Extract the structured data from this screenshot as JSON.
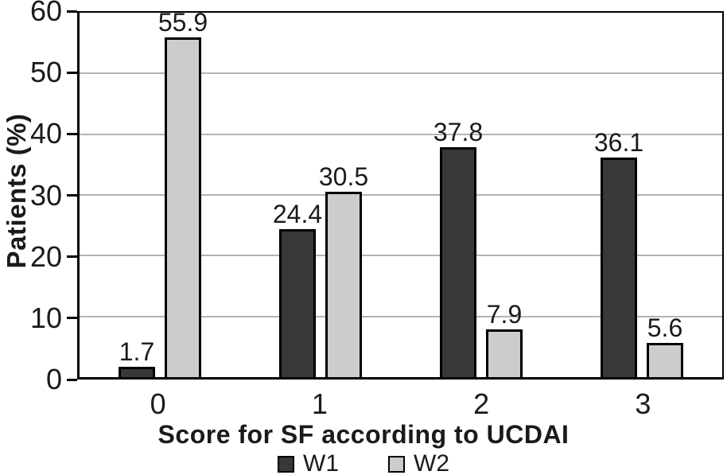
{
  "chart_data": {
    "type": "bar",
    "categories": [
      "0",
      "1",
      "2",
      "3"
    ],
    "series": [
      {
        "name": "W1",
        "values": [
          1.7,
          24.4,
          37.8,
          36.1
        ],
        "color": "#383838"
      },
      {
        "name": "W2",
        "values": [
          55.9,
          30.5,
          7.9,
          5.6
        ],
        "color": "#cccccc"
      }
    ],
    "value_labels": {
      "W1": [
        "1.7",
        "24.4",
        "37.8",
        "36.1"
      ],
      "W2": [
        "55.9",
        "30.5",
        "7.9",
        "5.6"
      ]
    },
    "title": "",
    "xlabel": "Score for SF according to UCDAI",
    "ylabel": "Patients (%)",
    "ylim": [
      0,
      60
    ],
    "yticks": [
      0,
      10,
      20,
      30,
      40,
      50,
      60
    ],
    "grid": true,
    "legend": {
      "position": "bottom",
      "entries": [
        "W1",
        "W2"
      ]
    },
    "colors": {
      "axis": "#000000",
      "gridline": "#b3b3b3",
      "text": "#1a1a1a",
      "background": "#ffffff"
    }
  }
}
